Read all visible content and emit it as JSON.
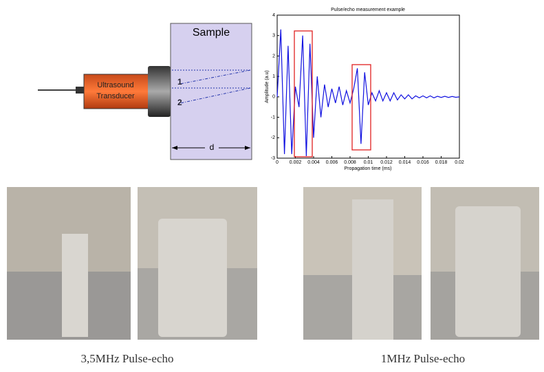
{
  "diagram": {
    "sample_label": "Sample",
    "transducer_label": [
      "Ultrasound",
      "Transducer"
    ],
    "echo_labels": [
      "1",
      "2"
    ],
    "distance_label": "d"
  },
  "chart_data": {
    "type": "line",
    "title": "Pulse/echo measurement example",
    "x_label": "Propagation time (ms)",
    "y_label": "Amplitude (a.u)",
    "x": [
      0,
      0.0004,
      0.0008,
      0.0012,
      0.0016,
      0.002,
      0.0024,
      0.0028,
      0.0032,
      0.0036,
      0.004,
      0.0044,
      0.0048,
      0.0052,
      0.0056,
      0.006,
      0.0064,
      0.0068,
      0.0072,
      0.0076,
      0.008,
      0.0084,
      0.0088,
      0.0092,
      0.0096,
      0.01,
      0.0104,
      0.0108,
      0.0112,
      0.0116,
      0.012,
      0.0124,
      0.0128,
      0.0132,
      0.0136,
      0.014,
      0.0144,
      0.0148,
      0.0152,
      0.0156,
      0.016,
      0.0164,
      0.0168,
      0.0172,
      0.0176,
      0.018,
      0.0184,
      0.0188,
      0.0192,
      0.0196,
      0.02
    ],
    "series": [
      {
        "color": "#1010e0",
        "values": [
          0,
          3.3,
          -2.8,
          2.5,
          -2.8,
          0.5,
          -0.5,
          3.0,
          -2.9,
          2.6,
          -2.0,
          1.0,
          -1.0,
          0.6,
          -0.5,
          0.4,
          -0.3,
          0.5,
          -0.4,
          0.3,
          -0.3,
          0.4,
          1.4,
          -2.3,
          1.2,
          -0.4,
          0.2,
          -0.2,
          0.3,
          -0.2,
          0.2,
          -0.2,
          0.2,
          -0.15,
          0.1,
          -0.1,
          0.1,
          -0.1,
          0.05,
          -0.05,
          0.05,
          -0.05,
          0.05,
          -0.05,
          0.03,
          -0.03,
          0.03,
          -0.03,
          0.02,
          -0.02,
          0
        ]
      }
    ],
    "xlim": [
      0,
      0.02
    ],
    "xticks": [
      0,
      0.002,
      0.004,
      0.006,
      0.008,
      0.01,
      0.012,
      0.014,
      0.016,
      0.018,
      0.02
    ],
    "ylim": [
      -3,
      4
    ],
    "yticks": [
      -3,
      -2,
      -1,
      0,
      1,
      2,
      3,
      4
    ]
  },
  "captions": [
    "3,5MHz Pulse-echo",
    "1MHz Pulse-echo"
  ]
}
